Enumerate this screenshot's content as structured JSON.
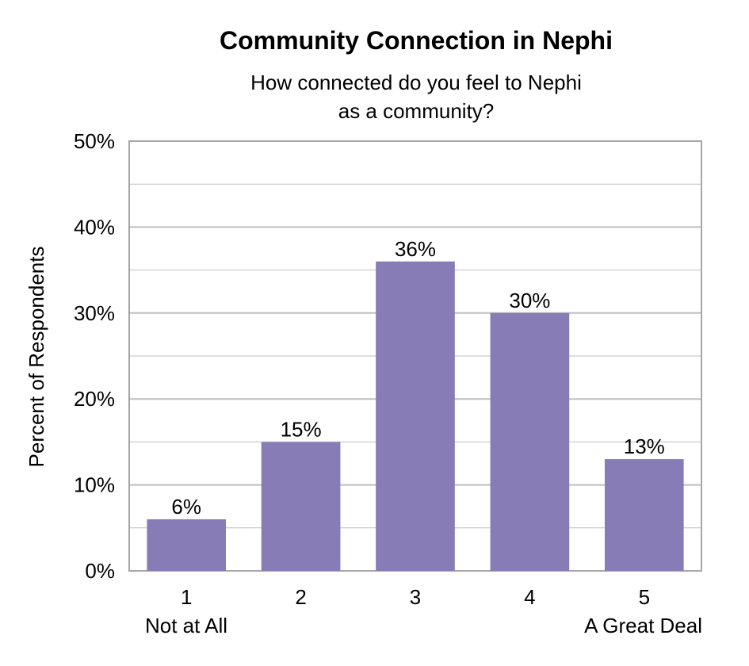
{
  "chart_data": {
    "type": "bar",
    "title": "Community Connection in Nephi",
    "subtitle_lines": [
      "How connected do you feel to Nephi",
      "as a community?"
    ],
    "ylabel": "Percent of Respondents",
    "categories": [
      "1",
      "2",
      "3",
      "4",
      "5"
    ],
    "category_sublabels": [
      "Not at All",
      "",
      "",
      "",
      "A Great Deal"
    ],
    "values": [
      6,
      15,
      36,
      30,
      13
    ],
    "value_labels": [
      "6%",
      "15%",
      "36%",
      "30%",
      "13%"
    ],
    "ylim": [
      0,
      50
    ],
    "y_ticks": [
      0,
      10,
      20,
      30,
      40,
      50
    ],
    "y_tick_labels": [
      "0%",
      "10%",
      "20%",
      "30%",
      "40%",
      "50%"
    ],
    "grid": true,
    "legend": "none",
    "colors": {
      "bar": "#877cb6",
      "gridline": "#bfbfbf",
      "axis": "#a6a6a6"
    }
  }
}
